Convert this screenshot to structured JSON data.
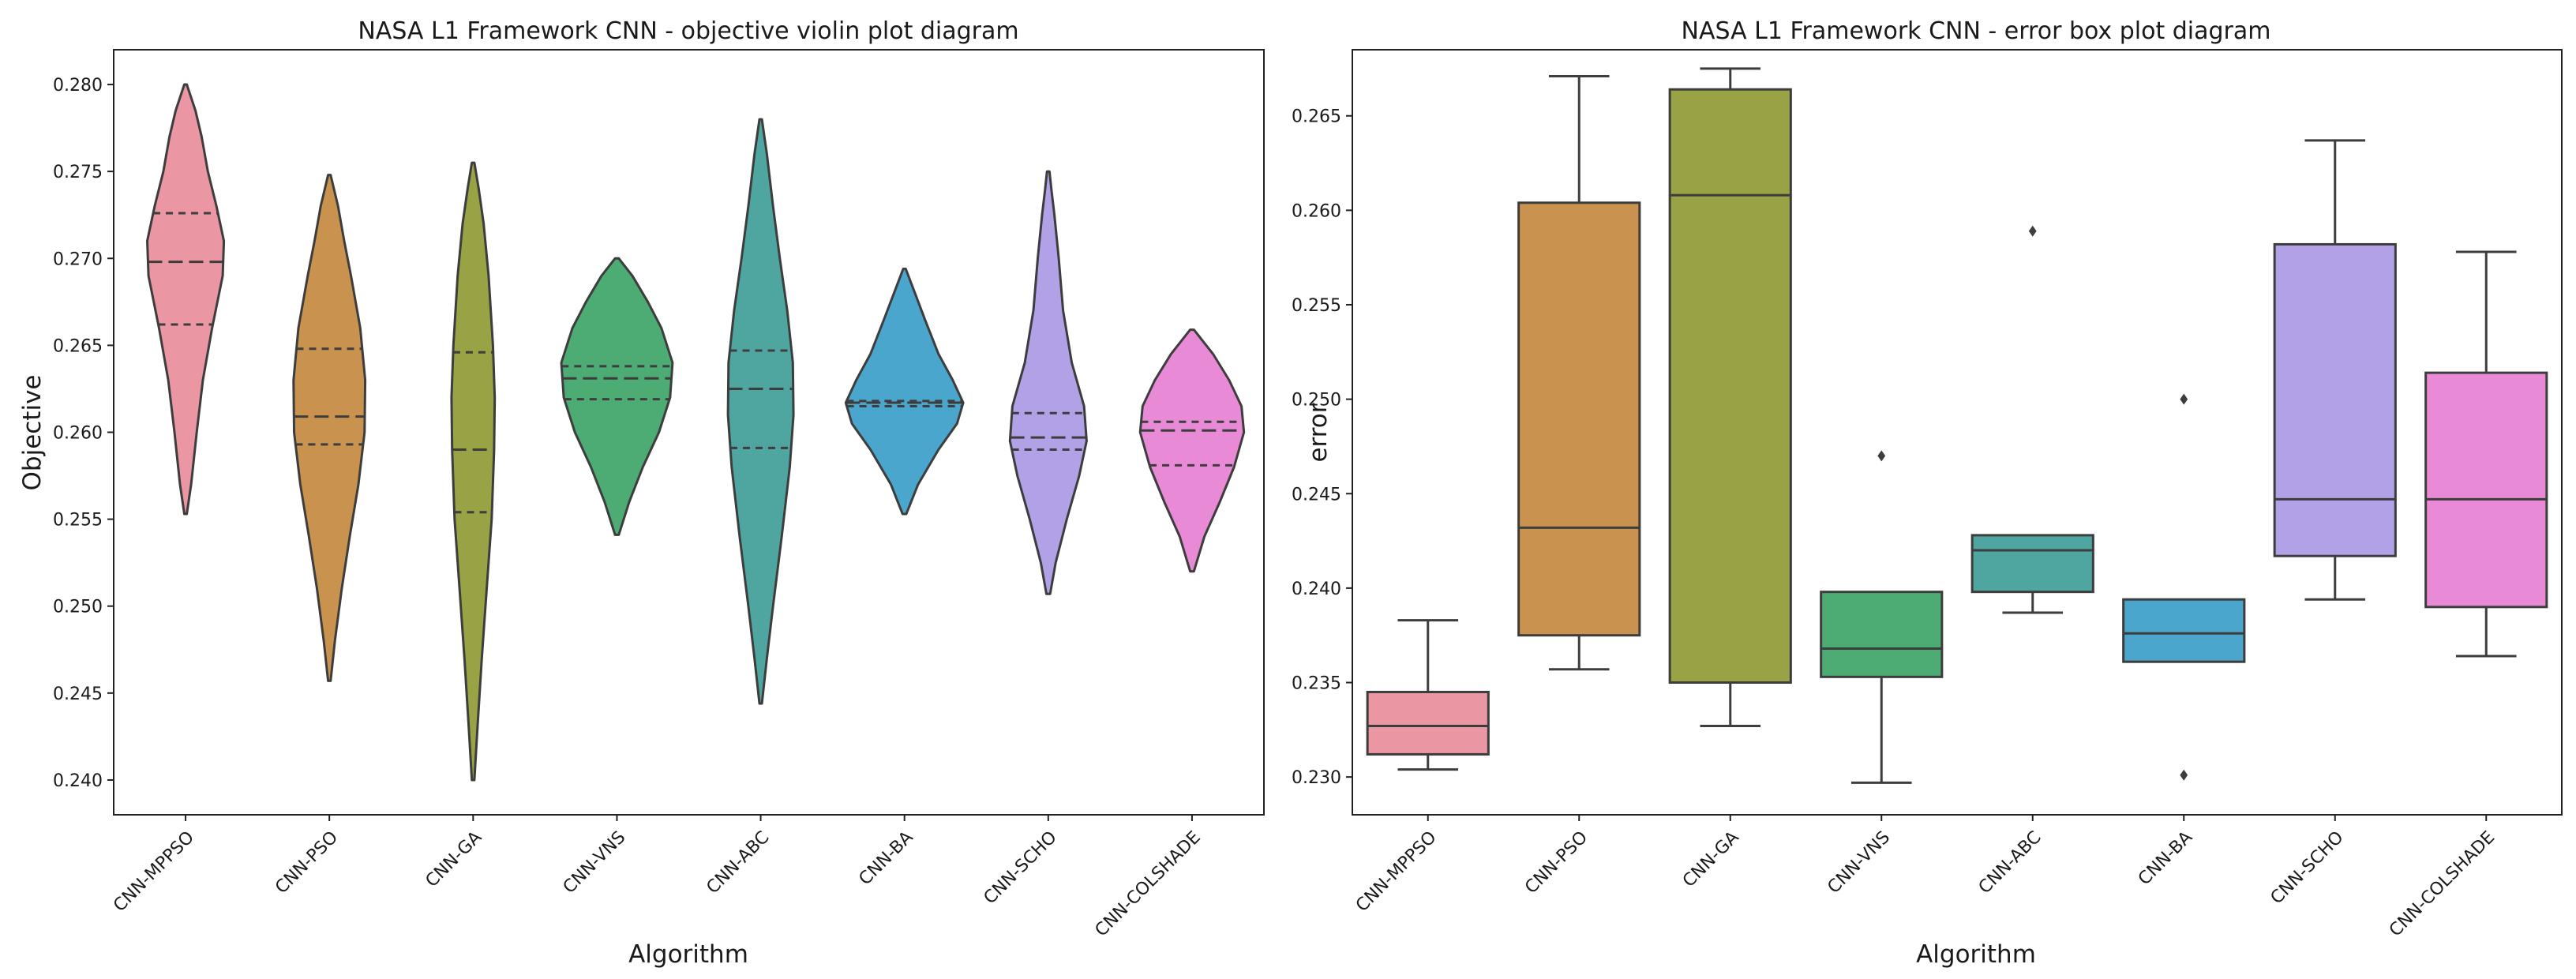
{
  "chart_data": [
    {
      "type": "violin",
      "title": "NASA L1 Framework CNN -  objective violin plot diagram",
      "xlabel": "Algorithm",
      "ylabel": "Objective",
      "ylim": [
        0.238,
        0.282
      ],
      "yticks": [
        0.24,
        0.245,
        0.25,
        0.255,
        0.26,
        0.265,
        0.27,
        0.275,
        0.28
      ],
      "ytick_labels": [
        "0.240",
        "0.245",
        "0.250",
        "0.255",
        "0.260",
        "0.265",
        "0.270",
        "0.275",
        "0.280"
      ],
      "grid": false,
      "categories": [
        "CNN-MPPSO",
        "CNN-PSO",
        "CNN-GA",
        "CNN-VNS",
        "CNN-ABC",
        "CNN-BA",
        "CNN-SCHO",
        "CNN-COLSHADE"
      ],
      "colors": [
        "#ea96a3",
        "#c9934f",
        "#99a244",
        "#4dab74",
        "#4fa6a0",
        "#4aa6cc",
        "#b3a1e8",
        "#e88ad5"
      ],
      "violins": [
        {
          "min": 0.2553,
          "max": 0.28,
          "q1": 0.2662,
          "median": 0.2698,
          "q3": 0.2726,
          "profile": [
            [
              0.2553,
              0.02
            ],
            [
              0.257,
              0.09
            ],
            [
              0.26,
              0.18
            ],
            [
              0.263,
              0.28
            ],
            [
              0.266,
              0.43
            ],
            [
              0.269,
              0.6
            ],
            [
              0.271,
              0.62
            ],
            [
              0.273,
              0.5
            ],
            [
              0.275,
              0.36
            ],
            [
              0.277,
              0.26
            ],
            [
              0.2785,
              0.16
            ],
            [
              0.28,
              0.02
            ]
          ]
        },
        {
          "min": 0.2457,
          "max": 0.2748,
          "q1": 0.2593,
          "median": 0.2609,
          "q3": 0.2648,
          "profile": [
            [
              0.2457,
              0.02
            ],
            [
              0.248,
              0.09
            ],
            [
              0.251,
              0.2
            ],
            [
              0.254,
              0.33
            ],
            [
              0.257,
              0.47
            ],
            [
              0.26,
              0.57
            ],
            [
              0.263,
              0.58
            ],
            [
              0.266,
              0.5
            ],
            [
              0.269,
              0.35
            ],
            [
              0.271,
              0.24
            ],
            [
              0.273,
              0.14
            ],
            [
              0.2748,
              0.02
            ]
          ]
        },
        {
          "min": 0.24,
          "max": 0.2755,
          "q1": 0.2554,
          "median": 0.259,
          "q3": 0.2646,
          "profile": [
            [
              0.24,
              0.02
            ],
            [
              0.243,
              0.07
            ],
            [
              0.247,
              0.14
            ],
            [
              0.251,
              0.22
            ],
            [
              0.255,
              0.3
            ],
            [
              0.259,
              0.34
            ],
            [
              0.262,
              0.35
            ],
            [
              0.265,
              0.32
            ],
            [
              0.269,
              0.25
            ],
            [
              0.272,
              0.17
            ],
            [
              0.274,
              0.09
            ],
            [
              0.2755,
              0.02
            ]
          ]
        },
        {
          "min": 0.2541,
          "max": 0.27,
          "q1": 0.2619,
          "median": 0.2631,
          "q3": 0.2638,
          "profile": [
            [
              0.2541,
              0.03
            ],
            [
              0.256,
              0.2
            ],
            [
              0.258,
              0.42
            ],
            [
              0.26,
              0.68
            ],
            [
              0.262,
              0.86
            ],
            [
              0.264,
              0.9
            ],
            [
              0.266,
              0.72
            ],
            [
              0.2675,
              0.5
            ],
            [
              0.269,
              0.25
            ],
            [
              0.27,
              0.03
            ]
          ]
        },
        {
          "min": 0.2444,
          "max": 0.278,
          "q1": 0.2591,
          "median": 0.2625,
          "q3": 0.2647,
          "profile": [
            [
              0.2444,
              0.02
            ],
            [
              0.247,
              0.1
            ],
            [
              0.25,
              0.2
            ],
            [
              0.254,
              0.34
            ],
            [
              0.258,
              0.47
            ],
            [
              0.261,
              0.53
            ],
            [
              0.264,
              0.52
            ],
            [
              0.267,
              0.43
            ],
            [
              0.27,
              0.31
            ],
            [
              0.273,
              0.2
            ],
            [
              0.276,
              0.1
            ],
            [
              0.278,
              0.02
            ]
          ]
        },
        {
          "min": 0.2553,
          "max": 0.2694,
          "q1": 0.2615,
          "median": 0.2617,
          "q3": 0.2618,
          "profile": [
            [
              0.2553,
              0.03
            ],
            [
              0.257,
              0.22
            ],
            [
              0.259,
              0.55
            ],
            [
              0.2605,
              0.85
            ],
            [
              0.2617,
              0.95
            ],
            [
              0.263,
              0.78
            ],
            [
              0.2645,
              0.55
            ],
            [
              0.2665,
              0.33
            ],
            [
              0.268,
              0.17
            ],
            [
              0.2694,
              0.02
            ]
          ]
        },
        {
          "min": 0.2507,
          "max": 0.275,
          "q1": 0.259,
          "median": 0.2597,
          "q3": 0.2611,
          "profile": [
            [
              0.2507,
              0.03
            ],
            [
              0.2525,
              0.12
            ],
            [
              0.255,
              0.3
            ],
            [
              0.2575,
              0.5
            ],
            [
              0.2595,
              0.62
            ],
            [
              0.2615,
              0.58
            ],
            [
              0.264,
              0.38
            ],
            [
              0.267,
              0.24
            ],
            [
              0.27,
              0.17
            ],
            [
              0.2725,
              0.1
            ],
            [
              0.274,
              0.05
            ],
            [
              0.275,
              0.02
            ]
          ]
        },
        {
          "min": 0.252,
          "max": 0.2659,
          "q1": 0.2581,
          "median": 0.2601,
          "q3": 0.2606,
          "profile": [
            [
              0.252,
              0.03
            ],
            [
              0.254,
              0.2
            ],
            [
              0.256,
              0.45
            ],
            [
              0.258,
              0.68
            ],
            [
              0.26,
              0.84
            ],
            [
              0.2615,
              0.8
            ],
            [
              0.263,
              0.6
            ],
            [
              0.2645,
              0.34
            ],
            [
              0.2659,
              0.03
            ]
          ]
        }
      ]
    },
    {
      "type": "box",
      "title": "NASA L1 Framework CNN - error box plot diagram",
      "xlabel": "Algorithm",
      "ylabel": "error",
      "ylim": [
        0.228,
        0.2685
      ],
      "yticks": [
        0.23,
        0.235,
        0.24,
        0.245,
        0.25,
        0.255,
        0.26,
        0.265
      ],
      "ytick_labels": [
        "0.230",
        "0.235",
        "0.240",
        "0.245",
        "0.250",
        "0.255",
        "0.260",
        "0.265"
      ],
      "grid": false,
      "categories": [
        "CNN-MPPSO",
        "CNN-PSO",
        "CNN-GA",
        "CNN-VNS",
        "CNN-ABC",
        "CNN-BA",
        "CNN-SCHO",
        "CNN-COLSHADE"
      ],
      "colors": [
        "#ea96a3",
        "#c9934f",
        "#99a244",
        "#4dab74",
        "#4fa6a0",
        "#4aa6cc",
        "#b3a1e8",
        "#e88ad5"
      ],
      "boxes": [
        {
          "whislo": 0.2304,
          "q1": 0.2312,
          "median": 0.2327,
          "q3": 0.2345,
          "whishi": 0.2383,
          "fliers": []
        },
        {
          "whislo": 0.2357,
          "q1": 0.2375,
          "median": 0.2432,
          "q3": 0.2604,
          "whishi": 0.2671,
          "fliers": []
        },
        {
          "whislo": 0.2327,
          "q1": 0.235,
          "median": 0.2608,
          "q3": 0.2664,
          "whishi": 0.2675,
          "fliers": []
        },
        {
          "whislo": 0.2297,
          "q1": 0.2353,
          "median": 0.2368,
          "q3": 0.2398,
          "whishi": 0.2398,
          "fliers": [
            0.247
          ]
        },
        {
          "whislo": 0.2387,
          "q1": 0.2398,
          "median": 0.242,
          "q3": 0.2428,
          "whishi": 0.2428,
          "fliers": [
            0.2589
          ]
        },
        {
          "whislo": 0.2361,
          "q1": 0.2361,
          "median": 0.2376,
          "q3": 0.2394,
          "whishi": 0.2394,
          "fliers": [
            0.25,
            0.2301
          ]
        },
        {
          "whislo": 0.2394,
          "q1": 0.2417,
          "median": 0.2447,
          "q3": 0.2582,
          "whishi": 0.2637,
          "fliers": []
        },
        {
          "whislo": 0.2364,
          "q1": 0.239,
          "median": 0.2447,
          "q3": 0.2514,
          "whishi": 0.2578,
          "fliers": []
        }
      ]
    }
  ]
}
